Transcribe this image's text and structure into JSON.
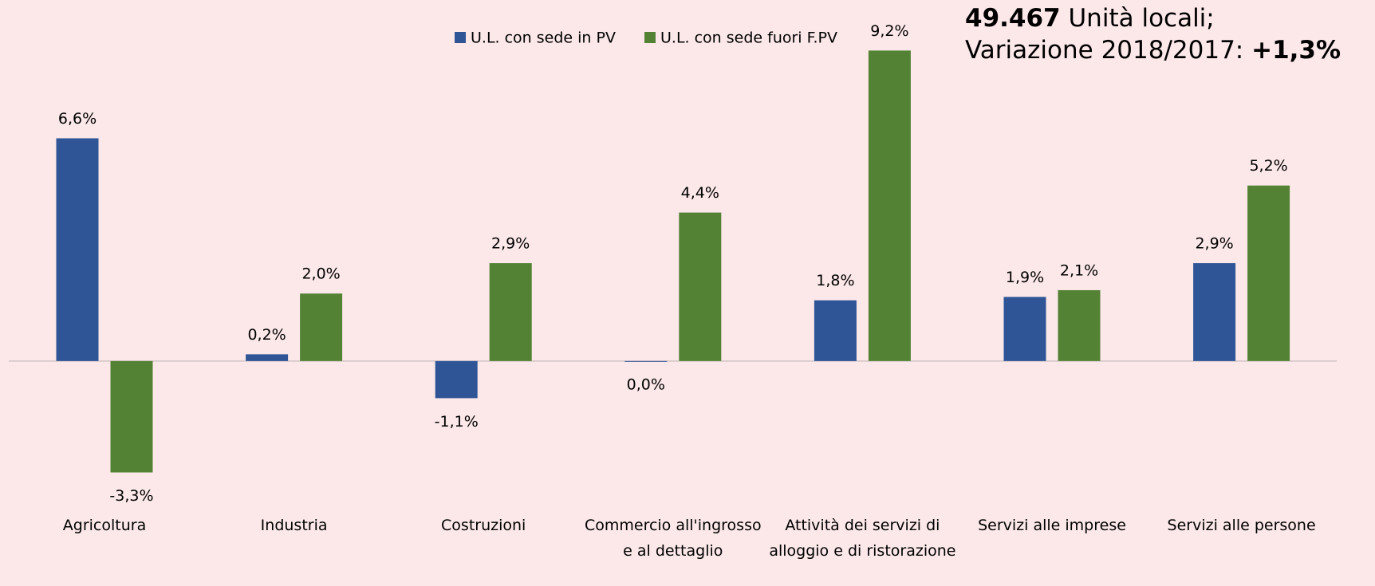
{
  "chart_data": {
    "type": "bar",
    "annotation": {
      "line1_bold": "49.467",
      "line1": " Unità locali;",
      "line2": "Variazione 2018/2017: ",
      "line2_bold": "+1,3%"
    },
    "categories": [
      "Agricoltura",
      "Industria",
      "Costruzioni",
      "Commercio all'ingrosso e al dettaglio",
      "Attività dei servizi di alloggio e di ristorazione",
      "Servizi alle imprese",
      "Servizi alle persone"
    ],
    "series": [
      {
        "name": "U.L. con sede in PV",
        "color": "#2f5597",
        "values": [
          6.6,
          0.2,
          -1.1,
          0.0,
          1.8,
          1.9,
          2.9
        ],
        "value_labels": [
          "6,6%",
          "0,2%",
          "-1,1%",
          "0,0%",
          "1,8%",
          "1,9%",
          "2,9%"
        ]
      },
      {
        "name": "U.L. con sede fuori F.PV",
        "color": "#548235",
        "values": [
          -3.3,
          2.0,
          2.9,
          4.4,
          9.2,
          2.1,
          5.2
        ],
        "value_labels": [
          "-3,3%",
          "2,0%",
          "2,9%",
          "4,4%",
          "9,2%",
          "2,1%",
          "5,2%"
        ]
      }
    ],
    "ylim": [
      -3.5,
      9.5
    ],
    "legend": "top"
  }
}
